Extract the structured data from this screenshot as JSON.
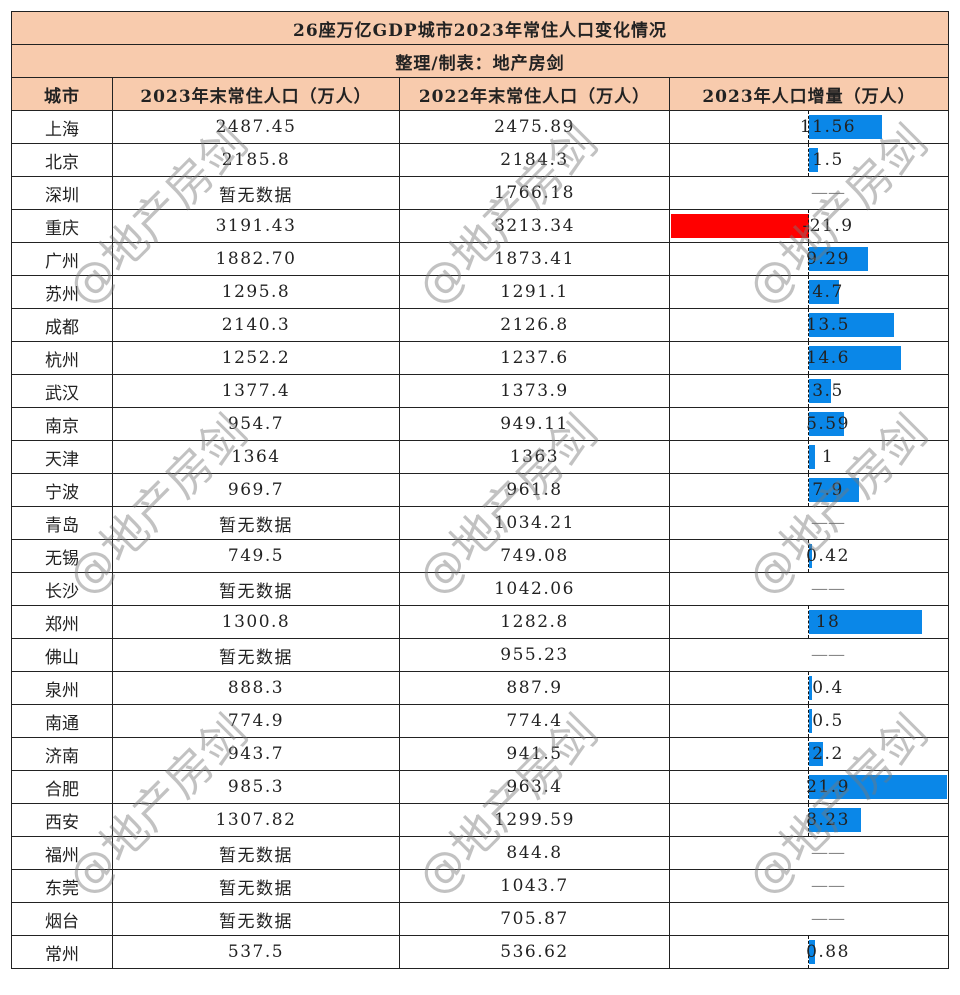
{
  "title": "26座万亿GDP城市2023年常住人口变化情况",
  "subtitle": "整理/制表：地产房剑",
  "columns": [
    "城市",
    "2023年末常住人口（万人）",
    "2022年末常住人口（万人）",
    "2023年人口增量（万人）"
  ],
  "colors": {
    "header_bg": "#f8cbad",
    "positive_bar": "#0a87e8",
    "negative_bar": "#ff0000",
    "border": "#222222"
  },
  "rows": [
    {
      "city": "上海",
      "pop2023": "2487.45",
      "pop2022": "2475.89",
      "increase": "11.56",
      "value": 11.56
    },
    {
      "city": "北京",
      "pop2023": "2185.8",
      "pop2022": "2184.3",
      "increase": "1.5",
      "value": 1.5
    },
    {
      "city": "深圳",
      "pop2023": "暂无数据",
      "pop2022": "1766.18",
      "increase": "——",
      "value": null
    },
    {
      "city": "重庆",
      "pop2023": "3191.43",
      "pop2022": "3213.34",
      "increase": "-21.9",
      "value": -21.9
    },
    {
      "city": "广州",
      "pop2023": "1882.70",
      "pop2022": "1873.41",
      "increase": "9.29",
      "value": 9.29
    },
    {
      "city": "苏州",
      "pop2023": "1295.8",
      "pop2022": "1291.1",
      "increase": "4.7",
      "value": 4.7
    },
    {
      "city": "成都",
      "pop2023": "2140.3",
      "pop2022": "2126.8",
      "increase": "13.5",
      "value": 13.5
    },
    {
      "city": "杭州",
      "pop2023": "1252.2",
      "pop2022": "1237.6",
      "increase": "14.6",
      "value": 14.6
    },
    {
      "city": "武汉",
      "pop2023": "1377.4",
      "pop2022": "1373.9",
      "increase": "3.5",
      "value": 3.5
    },
    {
      "city": "南京",
      "pop2023": "954.7",
      "pop2022": "949.11",
      "increase": "5.59",
      "value": 5.59
    },
    {
      "city": "天津",
      "pop2023": "1364",
      "pop2022": "1363",
      "increase": "1",
      "value": 1
    },
    {
      "city": "宁波",
      "pop2023": "969.7",
      "pop2022": "961.8",
      "increase": "7.9",
      "value": 7.9
    },
    {
      "city": "青岛",
      "pop2023": "暂无数据",
      "pop2022": "1034.21",
      "increase": "——",
      "value": null
    },
    {
      "city": "无锡",
      "pop2023": "749.5",
      "pop2022": "749.08",
      "increase": "0.42",
      "value": 0.42
    },
    {
      "city": "长沙",
      "pop2023": "暂无数据",
      "pop2022": "1042.06",
      "increase": "——",
      "value": null
    },
    {
      "city": "郑州",
      "pop2023": "1300.8",
      "pop2022": "1282.8",
      "increase": "18",
      "value": 18
    },
    {
      "city": "佛山",
      "pop2023": "暂无数据",
      "pop2022": "955.23",
      "increase": "——",
      "value": null
    },
    {
      "city": "泉州",
      "pop2023": "888.3",
      "pop2022": "887.9",
      "increase": "0.4",
      "value": 0.4
    },
    {
      "city": "南通",
      "pop2023": "774.9",
      "pop2022": "774.4",
      "increase": "0.5",
      "value": 0.5
    },
    {
      "city": "济南",
      "pop2023": "943.7",
      "pop2022": "941.5",
      "increase": "2.2",
      "value": 2.2
    },
    {
      "city": "合肥",
      "pop2023": "985.3",
      "pop2022": "963.4",
      "increase": "21.9",
      "value": 21.9
    },
    {
      "city": "西安",
      "pop2023": "1307.82",
      "pop2022": "1299.59",
      "increase": "8.23",
      "value": 8.23
    },
    {
      "city": "福州",
      "pop2023": "暂无数据",
      "pop2022": "844.8",
      "increase": "——",
      "value": null
    },
    {
      "city": "东莞",
      "pop2023": "暂无数据",
      "pop2022": "1043.7",
      "increase": "——",
      "value": null
    },
    {
      "city": "烟台",
      "pop2023": "暂无数据",
      "pop2022": "705.87",
      "increase": "——",
      "value": null
    },
    {
      "city": "常州",
      "pop2023": "537.5",
      "pop2022": "536.62",
      "increase": "0.88",
      "value": 0.88
    }
  ],
  "watermark": "@地产房剑",
  "chart_data": {
    "type": "table",
    "title": "26座万亿GDP城市2023年常住人口变化情况",
    "subtitle": "整理/制表：地产房剑",
    "columns": [
      "城市",
      "2023年末常住人口（万人）",
      "2022年末常住人口（万人）",
      "2023年人口增量（万人）"
    ],
    "categories": [
      "上海",
      "北京",
      "深圳",
      "重庆",
      "广州",
      "苏州",
      "成都",
      "杭州",
      "武汉",
      "南京",
      "天津",
      "宁波",
      "青岛",
      "无锡",
      "长沙",
      "郑州",
      "佛山",
      "泉州",
      "南通",
      "济南",
      "合肥",
      "西安",
      "福州",
      "东莞",
      "烟台",
      "常州"
    ],
    "series": [
      {
        "name": "2023年末常住人口（万人）",
        "values": [
          2487.45,
          2185.8,
          null,
          3191.43,
          1882.7,
          1295.8,
          2140.3,
          1252.2,
          1377.4,
          954.7,
          1364,
          969.7,
          null,
          749.5,
          null,
          1300.8,
          null,
          888.3,
          774.9,
          943.7,
          985.3,
          1307.82,
          null,
          null,
          null,
          537.5
        ]
      },
      {
        "name": "2022年末常住人口（万人）",
        "values": [
          2475.89,
          2184.3,
          1766.18,
          3213.34,
          1873.41,
          1291.1,
          2126.8,
          1237.6,
          1373.9,
          949.11,
          1363,
          961.8,
          1034.21,
          749.08,
          1042.06,
          1282.8,
          955.23,
          887.9,
          774.4,
          941.5,
          963.4,
          1299.59,
          844.8,
          1043.7,
          705.87,
          536.62
        ]
      },
      {
        "name": "2023年人口增量（万人）",
        "values": [
          11.56,
          1.5,
          null,
          -21.9,
          9.29,
          4.7,
          13.5,
          14.6,
          3.5,
          5.59,
          1,
          7.9,
          null,
          0.42,
          null,
          18,
          null,
          0.4,
          0.5,
          2.2,
          21.9,
          8.23,
          null,
          null,
          null,
          0.88
        ]
      }
    ],
    "in_cell_bars": {
      "column": "2023年人口增量（万人）",
      "positive_color": "#0a87e8",
      "negative_color": "#ff0000",
      "range": [
        -21.9,
        21.9
      ]
    }
  }
}
